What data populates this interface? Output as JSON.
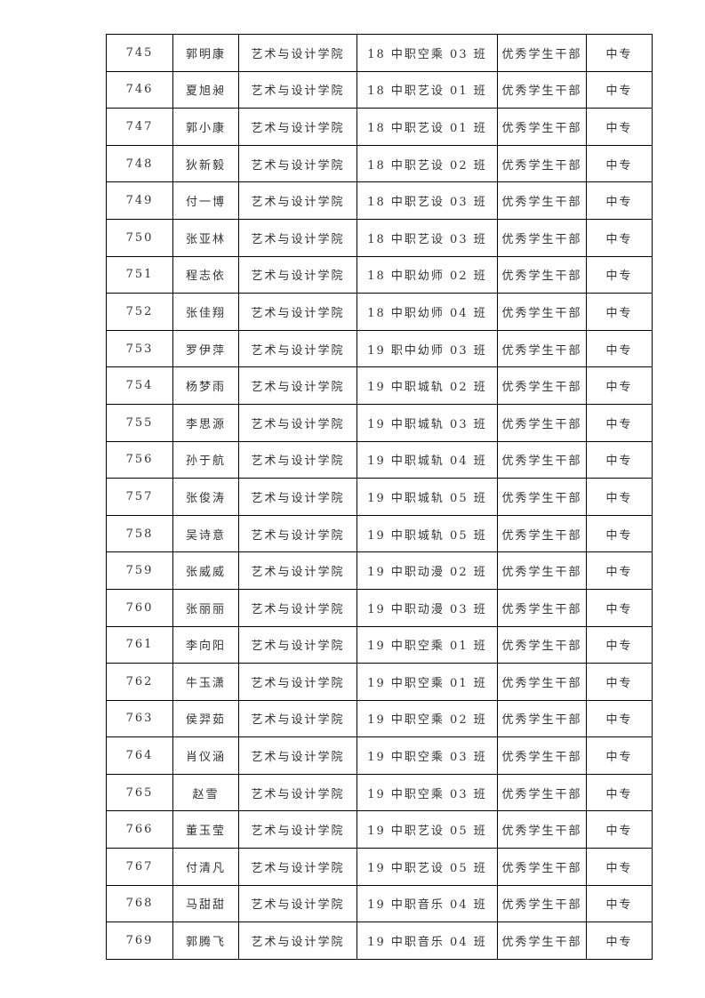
{
  "rows": [
    {
      "no": "745",
      "name": "郭明康",
      "college": "艺术与设计学院",
      "class": "18 中职空乘 03 班",
      "award": "优秀学生干部",
      "level": "中专"
    },
    {
      "no": "746",
      "name": "夏旭昶",
      "college": "艺术与设计学院",
      "class": "18 中职艺设 01 班",
      "award": "优秀学生干部",
      "level": "中专"
    },
    {
      "no": "747",
      "name": "郭小康",
      "college": "艺术与设计学院",
      "class": "18 中职艺设 01 班",
      "award": "优秀学生干部",
      "level": "中专"
    },
    {
      "no": "748",
      "name": "狄新毅",
      "college": "艺术与设计学院",
      "class": "18 中职艺设 02 班",
      "award": "优秀学生干部",
      "level": "中专"
    },
    {
      "no": "749",
      "name": "付一博",
      "college": "艺术与设计学院",
      "class": "18 中职艺设 03 班",
      "award": "优秀学生干部",
      "level": "中专"
    },
    {
      "no": "750",
      "name": "张亚林",
      "college": "艺术与设计学院",
      "class": "18 中职艺设 03 班",
      "award": "优秀学生干部",
      "level": "中专"
    },
    {
      "no": "751",
      "name": "程志依",
      "college": "艺术与设计学院",
      "class": "18 中职幼师 02 班",
      "award": "优秀学生干部",
      "level": "中专"
    },
    {
      "no": "752",
      "name": "张佳翔",
      "college": "艺术与设计学院",
      "class": "18 中职幼师 04 班",
      "award": "优秀学生干部",
      "level": "中专"
    },
    {
      "no": "753",
      "name": "罗伊萍",
      "college": "艺术与设计学院",
      "class": "19 职中幼师 03 班",
      "award": "优秀学生干部",
      "level": "中专"
    },
    {
      "no": "754",
      "name": "杨梦雨",
      "college": "艺术与设计学院",
      "class": "19 中职城轨 02 班",
      "award": "优秀学生干部",
      "level": "中专"
    },
    {
      "no": "755",
      "name": "李思源",
      "college": "艺术与设计学院",
      "class": "19 中职城轨 03 班",
      "award": "优秀学生干部",
      "level": "中专"
    },
    {
      "no": "756",
      "name": "孙于航",
      "college": "艺术与设计学院",
      "class": "19 中职城轨 04 班",
      "award": "优秀学生干部",
      "level": "中专"
    },
    {
      "no": "757",
      "name": "张俊涛",
      "college": "艺术与设计学院",
      "class": "19 中职城轨 05 班",
      "award": "优秀学生干部",
      "level": "中专"
    },
    {
      "no": "758",
      "name": "吴诗意",
      "college": "艺术与设计学院",
      "class": "19 中职城轨 05 班",
      "award": "优秀学生干部",
      "level": "中专"
    },
    {
      "no": "759",
      "name": "张威威",
      "college": "艺术与设计学院",
      "class": "19 中职动漫 02 班",
      "award": "优秀学生干部",
      "level": "中专"
    },
    {
      "no": "760",
      "name": "张丽丽",
      "college": "艺术与设计学院",
      "class": "19 中职动漫 03 班",
      "award": "优秀学生干部",
      "level": "中专"
    },
    {
      "no": "761",
      "name": "李向阳",
      "college": "艺术与设计学院",
      "class": "19 中职空乘 01 班",
      "award": "优秀学生干部",
      "level": "中专"
    },
    {
      "no": "762",
      "name": "牛玉潇",
      "college": "艺术与设计学院",
      "class": "19 中职空乘 01 班",
      "award": "优秀学生干部",
      "level": "中专"
    },
    {
      "no": "763",
      "name": "侯羿茹",
      "college": "艺术与设计学院",
      "class": "19 中职空乘 02 班",
      "award": "优秀学生干部",
      "level": "中专"
    },
    {
      "no": "764",
      "name": "肖仪涵",
      "college": "艺术与设计学院",
      "class": "19 中职空乘 03 班",
      "award": "优秀学生干部",
      "level": "中专"
    },
    {
      "no": "765",
      "name": "赵雪",
      "college": "艺术与设计学院",
      "class": "19 中职空乘 03 班",
      "award": "优秀学生干部",
      "level": "中专"
    },
    {
      "no": "766",
      "name": "董玉莹",
      "college": "艺术与设计学院",
      "class": "19 中职艺设 05 班",
      "award": "优秀学生干部",
      "level": "中专"
    },
    {
      "no": "767",
      "name": "付清凡",
      "college": "艺术与设计学院",
      "class": "19 中职艺设 05 班",
      "award": "优秀学生干部",
      "level": "中专"
    },
    {
      "no": "768",
      "name": "马甜甜",
      "college": "艺术与设计学院",
      "class": "19 中职音乐 04 班",
      "award": "优秀学生干部",
      "level": "中专"
    },
    {
      "no": "769",
      "name": "郭腾飞",
      "college": "艺术与设计学院",
      "class": "19 中职音乐 04 班",
      "award": "优秀学生干部",
      "level": "中专"
    }
  ]
}
